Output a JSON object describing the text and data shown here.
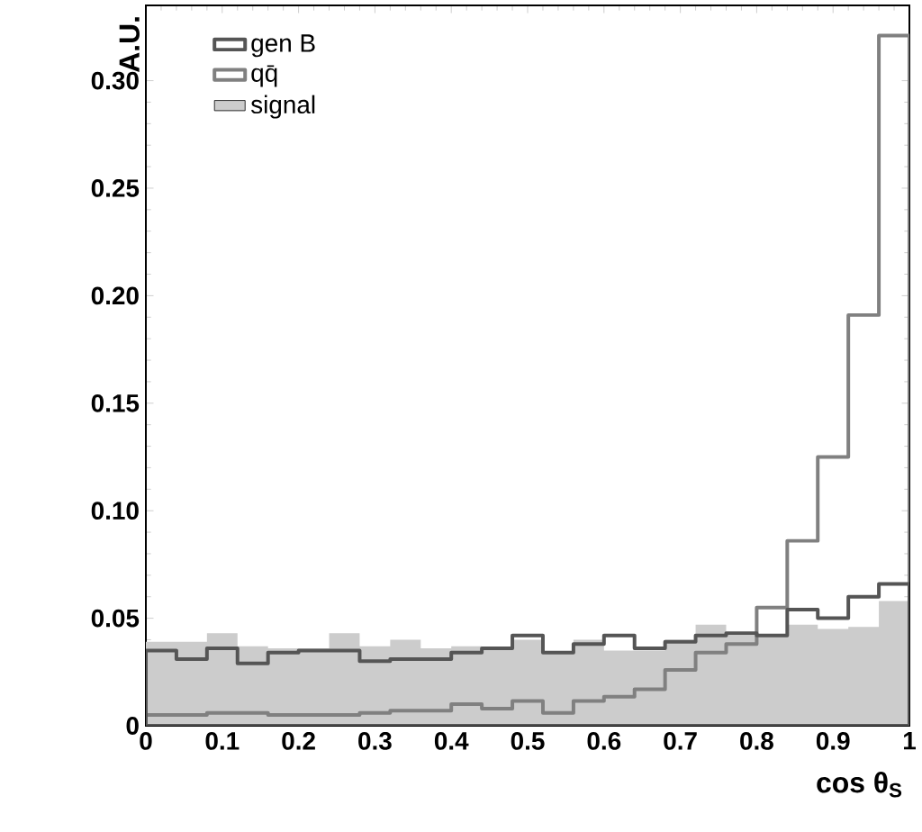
{
  "chart_data": {
    "type": "histogram",
    "xlabel": "cos θ$_{S}$",
    "ylabel": "A.U.",
    "bins": [
      0,
      0.04,
      0.08,
      0.12,
      0.16,
      0.2,
      0.24,
      0.28,
      0.32,
      0.36,
      0.4,
      0.44,
      0.48,
      0.52,
      0.56,
      0.6,
      0.64,
      0.68,
      0.72,
      0.76,
      0.8,
      0.84,
      0.88,
      0.92,
      0.96,
      1
    ],
    "series": [
      {
        "name": "gen B",
        "line_style": "solid",
        "color": "#555555",
        "values": [
          0.035,
          0.031,
          0.036,
          0.029,
          0.034,
          0.035,
          0.035,
          0.03,
          0.031,
          0.031,
          0.034,
          0.036,
          0.042,
          0.034,
          0.038,
          0.042,
          0.036,
          0.039,
          0.042,
          0.043,
          0.042,
          0.054,
          0.05,
          0.06,
          0.066
        ]
      },
      {
        "name": "qq̄",
        "line_style": "solid",
        "color": "#808080",
        "values": [
          0.005,
          0.005,
          0.006,
          0.006,
          0.005,
          0.005,
          0.005,
          0.006,
          0.007,
          0.007,
          0.01,
          0.008,
          0.0115,
          0.006,
          0.0115,
          0.0135,
          0.017,
          0.026,
          0.034,
          0.038,
          0.055,
          0.086,
          0.125,
          0.191,
          0.321
        ]
      },
      {
        "name": "signal",
        "color": "#cccccc",
        "values": [
          0.039,
          0.039,
          0.043,
          0.037,
          0.036,
          0.036,
          0.043,
          0.037,
          0.04,
          0.036,
          0.037,
          0.036,
          0.04,
          0.034,
          0.04,
          0.035,
          0.035,
          0.04,
          0.047,
          0.042,
          0.042,
          0.047,
          0.045,
          0.046,
          0.058
        ]
      }
    ],
    "xlim": [
      0,
      1
    ],
    "ylim": [
      0,
      0.335
    ],
    "xticks": [
      0,
      {
        "value": 0.1,
        "label": "0.1"
      },
      {
        "value": 0.2,
        "label": "0.2"
      },
      {
        "value": 0.3,
        "label": "0.3"
      },
      {
        "value": 0.4,
        "label": "0.4"
      },
      {
        "value": 0.5,
        "label": "0.5"
      },
      {
        "value": 0.6,
        "label": "0.6"
      },
      {
        "value": 0.7,
        "label": "0.7"
      },
      {
        "value": 0.8,
        "label": "0.8"
      },
      {
        "value": 0.9,
        "label": "0.9"
      },
      1
    ],
    "yticks": [
      0,
      {
        "value": 0.05,
        "label": "0.05"
      },
      {
        "value": 0.1,
        "label": "0.10"
      },
      {
        "value": 0.15,
        "label": "0.15"
      },
      {
        "value": 0.2,
        "label": "0.20"
      },
      {
        "value": 0.25,
        "label": "0.25"
      },
      {
        "value": 0.3,
        "label": "0.30"
      }
    ],
    "legend": "top left",
    "grid": false
  }
}
